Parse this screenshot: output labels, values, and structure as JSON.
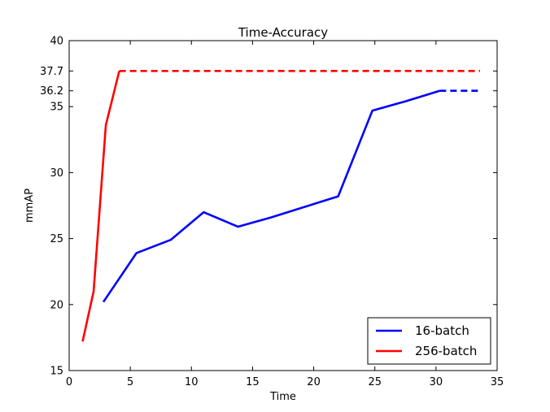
{
  "chart_data": {
    "type": "line",
    "title": "Time-Accuracy",
    "xlabel": "Time",
    "ylabel": "mmAP",
    "xlim": [
      0,
      35
    ],
    "ylim": [
      15,
      40
    ],
    "x_ticks": [
      0,
      5,
      10,
      15,
      20,
      25,
      30,
      35
    ],
    "y_ticks": [
      15,
      20,
      25,
      30,
      35,
      36.2,
      37.7,
      40
    ],
    "y_tick_labels": [
      "15",
      "20",
      "25",
      "30",
      "35",
      "36.2",
      "37.7",
      "40"
    ],
    "grid": false,
    "legend_position": "lower-right",
    "series": [
      {
        "name": "16-batch",
        "color": "#0000ff",
        "points": [
          [
            2.8,
            20.2
          ],
          [
            5.5,
            23.9
          ],
          [
            8.3,
            24.9
          ],
          [
            11.0,
            27.0
          ],
          [
            13.8,
            25.9
          ],
          [
            16.5,
            26.6
          ],
          [
            22.0,
            28.2
          ],
          [
            24.8,
            34.7
          ],
          [
            27.5,
            35.4
          ],
          [
            30.3,
            36.2
          ]
        ],
        "dashed_points": [
          [
            30.3,
            36.2
          ],
          [
            33.6,
            36.2
          ]
        ]
      },
      {
        "name": "256-batch",
        "color": "#ff0000",
        "points": [
          [
            1.1,
            17.2
          ],
          [
            2.0,
            21.0
          ],
          [
            3.0,
            33.6
          ],
          [
            4.1,
            37.7
          ]
        ],
        "dashed_points": [
          [
            4.1,
            37.7
          ],
          [
            33.6,
            37.7
          ]
        ]
      }
    ]
  }
}
